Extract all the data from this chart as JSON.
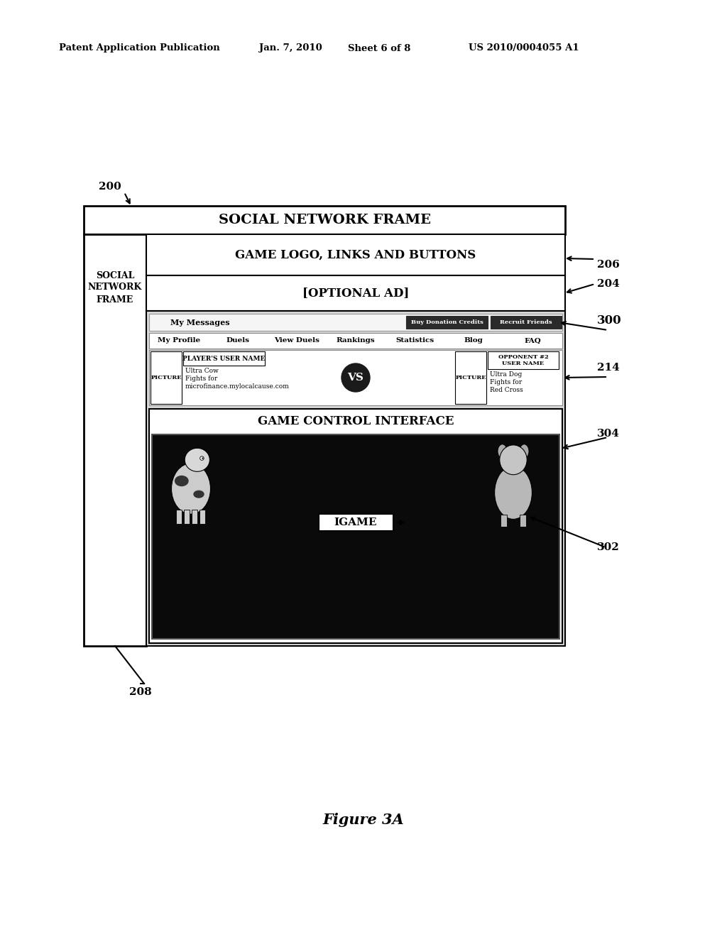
{
  "bg_color": "#ffffff",
  "header_text": "Patent Application Publication",
  "header_date": "Jan. 7, 2010",
  "header_sheet": "Sheet 6 of 8",
  "header_patent": "US 2010/0004055 A1",
  "figure_label": "Figure 3A",
  "label_200": "200",
  "label_206": "206",
  "label_204": "204",
  "label_300": "300",
  "label_214": "214",
  "label_304": "304",
  "label_302": "302",
  "label_208": "208",
  "snf_label": "SOCIAL NETWORK FRAME",
  "snf_side_label": "SOCIAL\nNETWORK\nFRAME",
  "game_logo_label": "GAME LOGO, LINKS AND BUTTONS",
  "optional_ad_label": "[OPTIONAL AD]",
  "game_control_label": "GAME CONTROL INTERFACE",
  "igame_label": "IGAME",
  "my_messages": "My Messages",
  "buy_credits": "Buy Donation Credits",
  "recruit_friends": "Recruit Friends",
  "nav_items": [
    "My Profile",
    "Duels",
    "View Duels",
    "Rankings",
    "Statistics",
    "Blog",
    "FAQ"
  ],
  "player_picture": "PICTURE",
  "player_username": "PLAYER'S USER NAME",
  "player_info": "Ultra Cow\nFights for\nmicrofinance.mylocalcause.com",
  "picture2": "PICTURE",
  "opponent_username": "OPPONENT #2\nUSER NAME",
  "opponent_info": "Ultra Dog\nFights for\nRed Cross",
  "vs_text": "VS"
}
